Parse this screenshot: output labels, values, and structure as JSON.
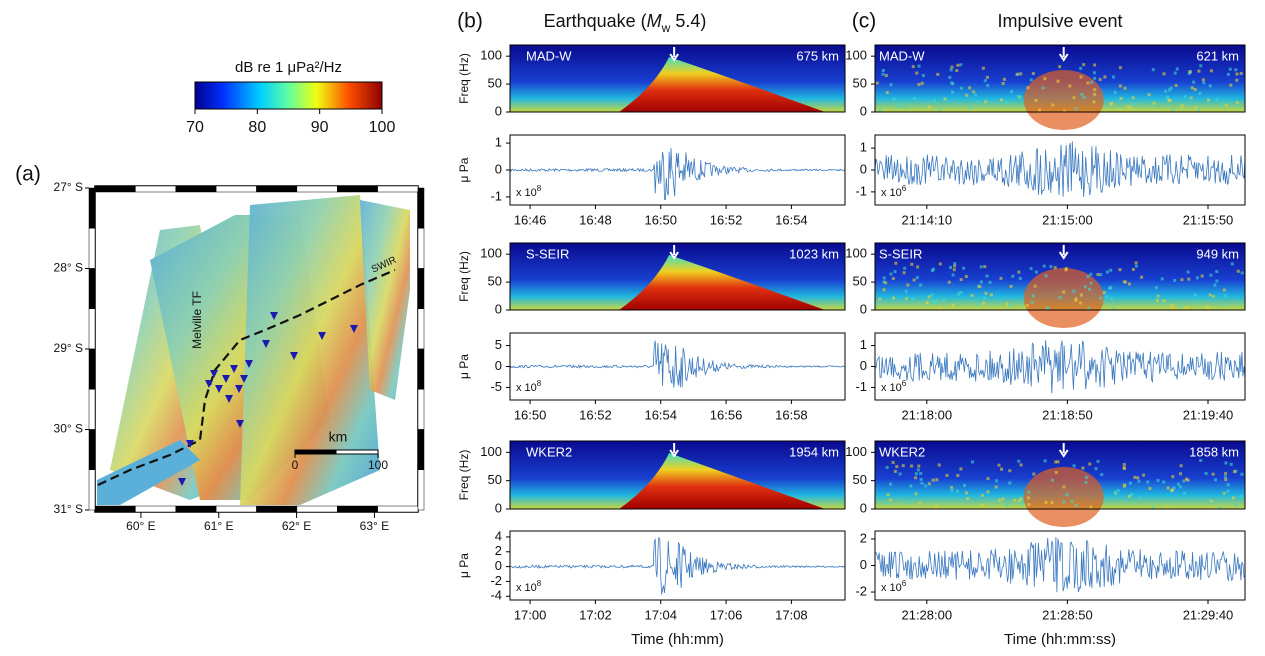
{
  "panel_labels": [
    "(a)",
    "(b)",
    "(c)"
  ],
  "colorbar": {
    "label": "dB re 1 μPa²/Hz",
    "lim": [
      70,
      100
    ],
    "ticks": [
      70,
      80,
      90,
      100
    ]
  },
  "map": {
    "xlim": [
      59.41,
      63.56
    ],
    "ylim": [
      -31,
      -27
    ],
    "yticks": [
      {
        "value": -27,
        "label": "27° S"
      },
      {
        "value": -28,
        "label": "28° S"
      },
      {
        "value": -29,
        "label": "29° S"
      },
      {
        "value": -30,
        "label": "30° S"
      },
      {
        "value": -31,
        "label": "31° S"
      }
    ],
    "xticks": [
      {
        "value": 60,
        "label": "60° E"
      },
      {
        "value": 61,
        "label": "61° E"
      },
      {
        "value": 62,
        "label": "62° E"
      },
      {
        "value": 63,
        "label": "63° E"
      }
    ],
    "labels": [
      "Melville TF",
      "SWIR"
    ],
    "scale": {
      "label": "km",
      "ticks": [
        0,
        100
      ]
    }
  },
  "columns": [
    {
      "title_parts": [
        "Earthquake (",
        "M",
        "w",
        " 5.4)"
      ],
      "xlabel": "Time (hh:mm)",
      "stations": [
        {
          "name": "MAD-W",
          "distance": "675 km",
          "freq_label": "Freq (Hz)",
          "freq_ticks": [
            0,
            50,
            100
          ],
          "freq_lim": [
            0,
            120
          ],
          "amp_label": "μ Pa",
          "amp_ticks": [
            -1,
            0,
            1
          ],
          "amp_lim": [
            -1.3,
            1.3
          ],
          "amp_scale": [
            "x 10",
            "8"
          ],
          "time_ticks": [
            "16:46",
            "16:48",
            "16:50",
            "16:52",
            "16:54"
          ]
        },
        {
          "name": "S-SEIR",
          "distance": "1023 km",
          "freq_label": "Freq (Hz)",
          "freq_ticks": [
            0,
            50,
            100
          ],
          "freq_lim": [
            0,
            120
          ],
          "amp_label": "μ Pa",
          "amp_ticks": [
            -5,
            0,
            5
          ],
          "amp_lim": [
            -8,
            8
          ],
          "amp_scale": [
            "x 10",
            "8"
          ],
          "time_ticks": [
            "16:50",
            "16:52",
            "16:54",
            "16:56",
            "16:58"
          ]
        },
        {
          "name": "WKER2",
          "distance": "1954 km",
          "freq_label": "Freq (Hz)",
          "freq_ticks": [
            0,
            50,
            100
          ],
          "freq_lim": [
            0,
            120
          ],
          "amp_label": "μ Pa",
          "amp_ticks": [
            -4,
            -2,
            0,
            2,
            4
          ],
          "amp_lim": [
            -4.5,
            4.8
          ],
          "amp_scale": [
            "x 10",
            "8"
          ],
          "time_ticks": [
            "17:00",
            "17:02",
            "17:04",
            "17:06",
            "17:08"
          ]
        }
      ]
    },
    {
      "title_parts": [
        "Impulsive event"
      ],
      "xlabel": "Time (hh:mm:ss)",
      "stations": [
        {
          "name": "MAD-W",
          "distance": "621 km",
          "freq_label": "",
          "freq_ticks": [
            0,
            50,
            100
          ],
          "freq_lim": [
            0,
            120
          ],
          "amp_label": "",
          "amp_ticks": [
            -1,
            0,
            1
          ],
          "amp_lim": [
            -1.6,
            1.6
          ],
          "amp_scale": [
            "x 10",
            "6"
          ],
          "time_ticks": [
            "21:14:10",
            "21:15:00",
            "21:15:50"
          ]
        },
        {
          "name": "S-SEIR",
          "distance": "949 km",
          "freq_label": "",
          "freq_ticks": [
            0,
            50,
            100
          ],
          "freq_lim": [
            0,
            120
          ],
          "amp_label": "",
          "amp_ticks": [
            -1,
            0,
            1
          ],
          "amp_lim": [
            -1.6,
            1.6
          ],
          "amp_scale": [
            "x 10",
            "6"
          ],
          "time_ticks": [
            "21:18:00",
            "21:18:50",
            "21:19:40"
          ]
        },
        {
          "name": "WKER2",
          "distance": "1858 km",
          "freq_label": "",
          "freq_ticks": [
            0,
            50,
            100
          ],
          "freq_lim": [
            0,
            120
          ],
          "amp_label": "",
          "amp_ticks": [
            -2,
            0,
            2
          ],
          "amp_lim": [
            -2.6,
            2.6
          ],
          "amp_scale": [
            "x 10",
            "6"
          ],
          "time_ticks": [
            "21:28:00",
            "21:28:50",
            "21:29:40"
          ]
        }
      ]
    }
  ]
}
